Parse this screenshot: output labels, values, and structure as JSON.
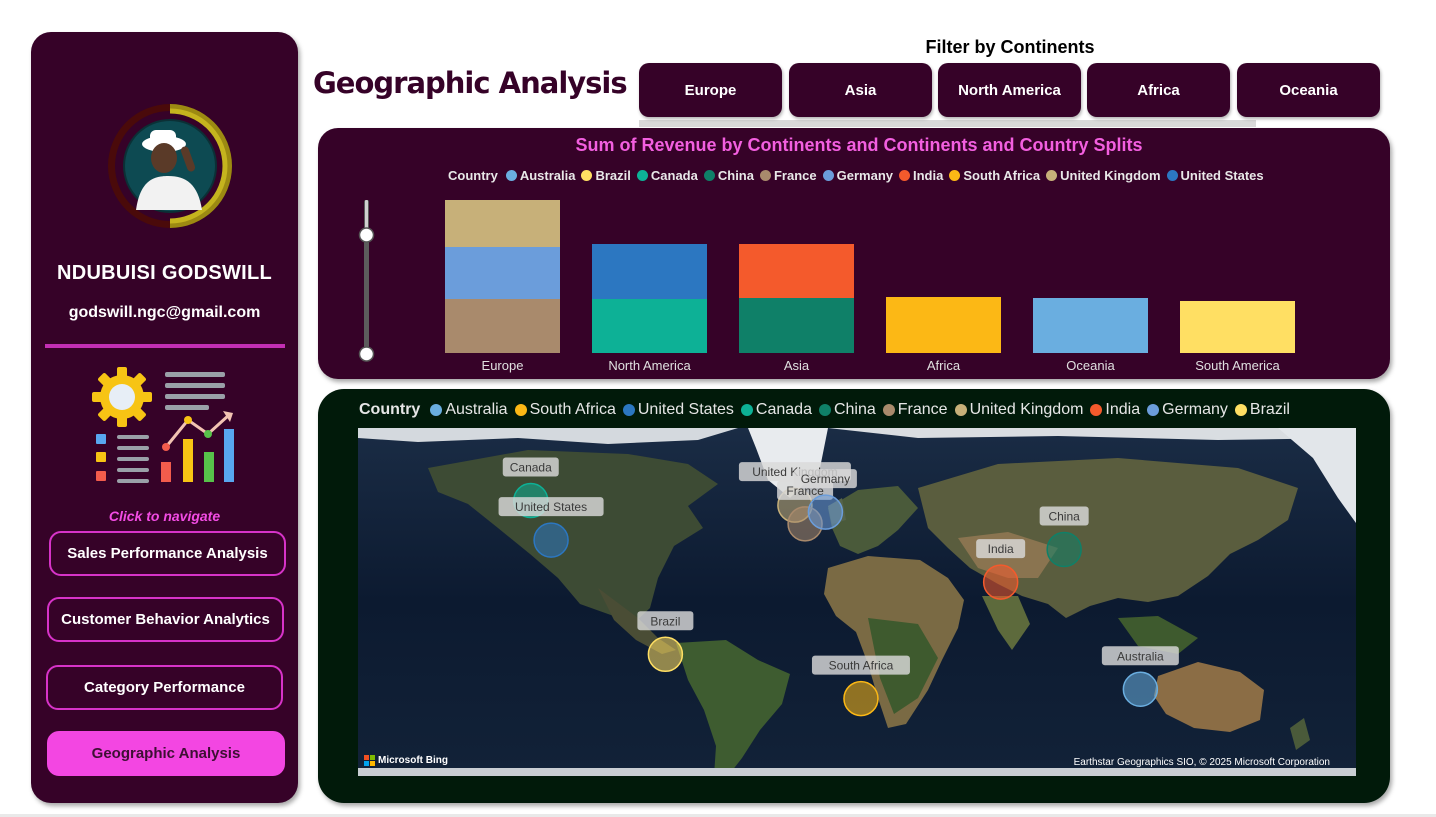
{
  "sidebar": {
    "user_name": "NDUBUISI GODSWILL",
    "user_email": "godswill.ngc@gmail.com",
    "nav_hint": "Click to navigate",
    "nav_items": [
      {
        "label": "Sales Performance Analysis",
        "active": false
      },
      {
        "label": "Customer Behavior Analytics",
        "active": false
      },
      {
        "label": "Category Performance",
        "active": false
      },
      {
        "label": "Geographic Analysis",
        "active": true
      }
    ],
    "icons": [
      "avatar",
      "gear-icon",
      "report-lines-icon",
      "growth-bar-chart-icon"
    ]
  },
  "header": {
    "page_title": "Geographic Analysis",
    "filter_title": "Filter by Continents",
    "filters": [
      "Europe",
      "Asia",
      "North America",
      "Africa",
      "Oceania"
    ]
  },
  "colors": {
    "brand_dark": "#360228",
    "accent_pink": "#f346e2",
    "map_panel_bg": "#011a0a",
    "chart_title": "#f35fe0"
  },
  "chart_data": {
    "type": "bar",
    "stacked": true,
    "title": "Sum of Revenue by Continents and Continents and Country Splits",
    "legend_title": "Country",
    "legend": [
      {
        "name": "Australia",
        "color": "#6aaee0"
      },
      {
        "name": "Brazil",
        "color": "#ffdf63"
      },
      {
        "name": "Canada",
        "color": "#0db196"
      },
      {
        "name": "China",
        "color": "#0f8068"
      },
      {
        "name": "France",
        "color": "#a98a6c"
      },
      {
        "name": "Germany",
        "color": "#6b9ddb"
      },
      {
        "name": "India",
        "color": "#f45a2c"
      },
      {
        "name": "South Africa",
        "color": "#fcb815"
      },
      {
        "name": "United Kingdom",
        "color": "#c7b079"
      },
      {
        "name": "United States",
        "color": "#2c77c1"
      }
    ],
    "categories": [
      "Europe",
      "North America",
      "Asia",
      "Africa",
      "Oceania",
      "South America"
    ],
    "series": [
      {
        "name": "France",
        "values": [
          54,
          0,
          0,
          0,
          0,
          0
        ]
      },
      {
        "name": "Germany",
        "values": [
          52,
          0,
          0,
          0,
          0,
          0
        ]
      },
      {
        "name": "United Kingdom",
        "values": [
          47,
          0,
          0,
          0,
          0,
          0
        ]
      },
      {
        "name": "Canada",
        "values": [
          0,
          54,
          0,
          0,
          0,
          0
        ]
      },
      {
        "name": "United States",
        "values": [
          0,
          55,
          0,
          0,
          0,
          0
        ]
      },
      {
        "name": "China",
        "values": [
          0,
          0,
          55,
          0,
          0,
          0
        ]
      },
      {
        "name": "India",
        "values": [
          0,
          0,
          54,
          0,
          0,
          0
        ]
      },
      {
        "name": "South Africa",
        "values": [
          0,
          0,
          0,
          56,
          0,
          0
        ]
      },
      {
        "name": "Australia",
        "values": [
          0,
          0,
          0,
          0,
          55,
          0
        ]
      },
      {
        "name": "Brazil",
        "values": [
          0,
          0,
          0,
          0,
          0,
          52
        ]
      }
    ],
    "ylim": [
      0,
      153
    ],
    "grid": false,
    "legend_position": "top"
  },
  "map": {
    "legend_title": "Country",
    "legend": [
      {
        "name": "Australia",
        "color": "#6aaee0"
      },
      {
        "name": "South Africa",
        "color": "#fcb815"
      },
      {
        "name": "United States",
        "color": "#2c77c1"
      },
      {
        "name": "Canada",
        "color": "#0db196"
      },
      {
        "name": "China",
        "color": "#0f8068"
      },
      {
        "name": "France",
        "color": "#a98a6c"
      },
      {
        "name": "United Kingdom",
        "color": "#c7b079"
      },
      {
        "name": "India",
        "color": "#f45a2c"
      },
      {
        "name": "Germany",
        "color": "#6b9ddb"
      },
      {
        "name": "Brazil",
        "color": "#ffdf63"
      }
    ],
    "bubbles": [
      {
        "name": "Canada",
        "lon": -106,
        "lat": 56,
        "color": "#0db196"
      },
      {
        "name": "United States",
        "lon": -98,
        "lat": 39,
        "color": "#2c77c1"
      },
      {
        "name": "United Kingdom",
        "lon": -2,
        "lat": 54,
        "color": "#c7b079"
      },
      {
        "name": "France",
        "lon": 2,
        "lat": 46,
        "color": "#a98a6c"
      },
      {
        "name": "Germany",
        "lon": 10,
        "lat": 51,
        "color": "#6b9ddb"
      },
      {
        "name": "China",
        "lon": 104,
        "lat": 35,
        "color": "#0f8068"
      },
      {
        "name": "India",
        "lon": 79,
        "lat": 21,
        "color": "#f45a2c"
      },
      {
        "name": "Brazil",
        "lon": -53,
        "lat": -10,
        "color": "#ffdf63"
      },
      {
        "name": "South Africa",
        "lon": 24,
        "lat": -29,
        "color": "#fcb815"
      },
      {
        "name": "Australia",
        "lon": 134,
        "lat": -25,
        "color": "#6aaee0"
      }
    ],
    "logo_text": "Microsoft Bing",
    "attribution": "Earthstar Geographics SIO, © 2025 Microsoft Corporation"
  }
}
